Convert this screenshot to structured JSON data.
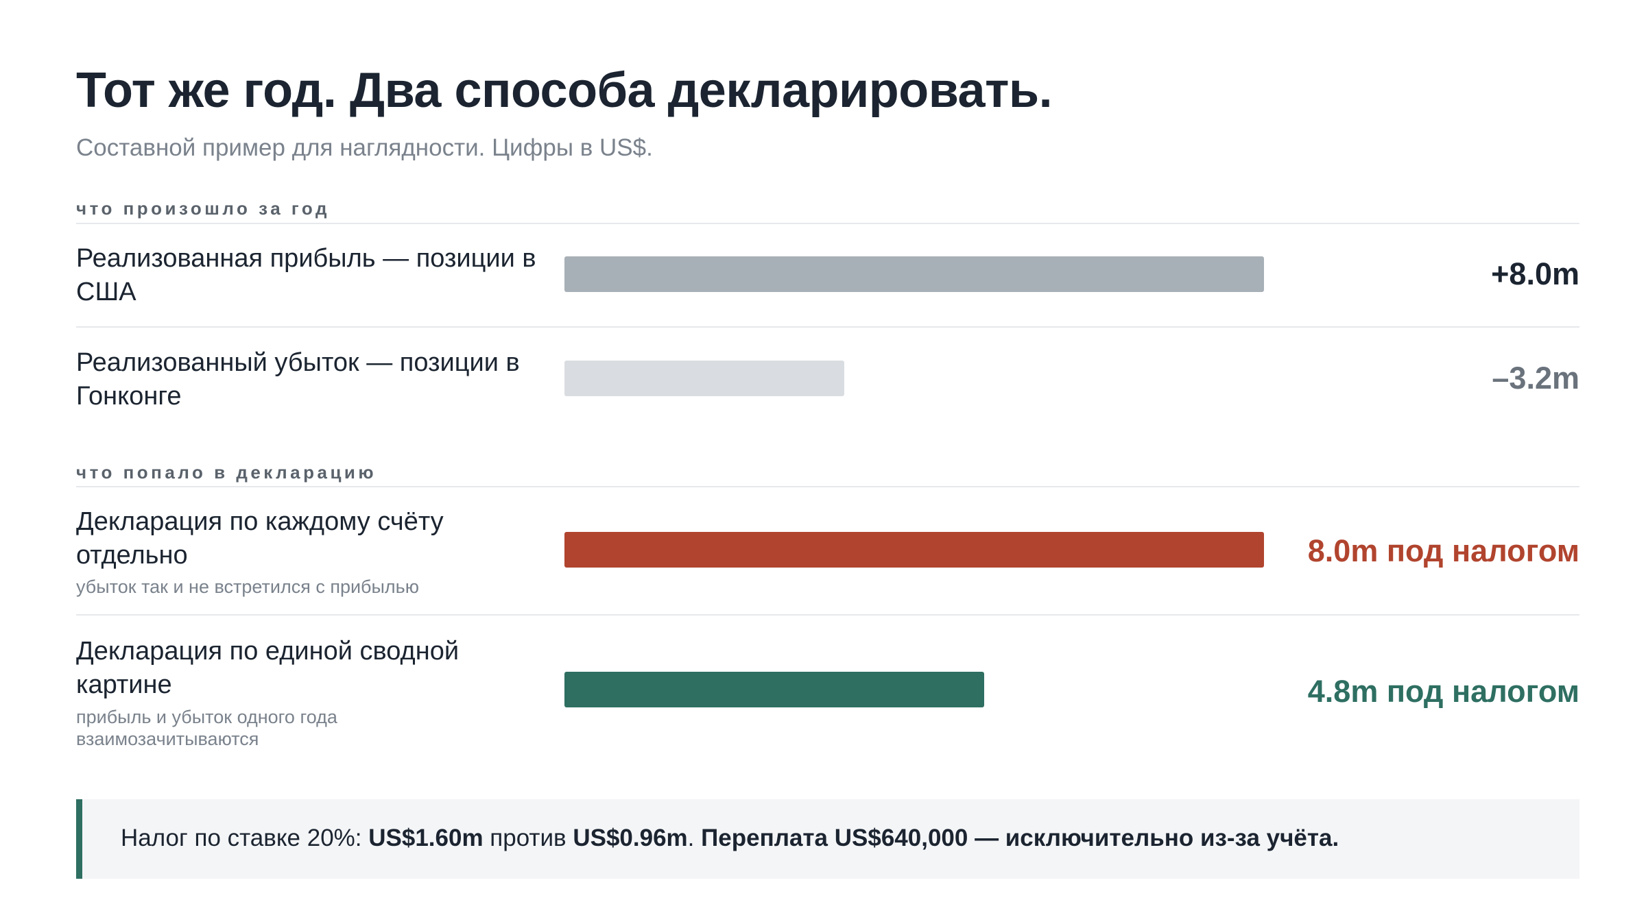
{
  "title": "Тот же год. Два способа декларировать.",
  "subtitle": "Составной пример для наглядности. Цифры в US$.",
  "chart_data": {
    "type": "bar",
    "orientation": "horizontal",
    "unit": "m US$",
    "x_max": 12,
    "groups": [
      {
        "label": "что произошло за год",
        "rows": [
          {
            "label": "Реализованная прибыль — позиции в США",
            "note": "",
            "value": 8.0,
            "value_label": "+8.0m",
            "color": "#a8b0b7",
            "text_color": "#1b2430"
          },
          {
            "label": "Реализованный убыток — позиции в Гонконге",
            "note": "",
            "value": 3.2,
            "value_label": "–3.2m",
            "color": "#d9dde1",
            "text_color": "#6a727c"
          }
        ]
      },
      {
        "label": "что попало в декларацию",
        "rows": [
          {
            "label": "Декларация по каждому счёту отдельно",
            "note": "убыток так и не встретился с прибылью",
            "value": 8.0,
            "value_label": "8.0m под налогом",
            "color": "#b1442e",
            "text_color": "#b1442e"
          },
          {
            "label": "Декларация по единой сводной картине",
            "note": "прибыль и убыток одного года взаимозачитываются",
            "value": 4.8,
            "value_label": "4.8m под налогом",
            "color": "#2e6f62",
            "text_color": "#2e6f62"
          }
        ]
      }
    ]
  },
  "callout": {
    "prefix": "Налог по ставке 20%: ",
    "amount_a": "US$1.60m",
    "middle": " против ",
    "amount_b": "US$0.96m",
    "dot": ". ",
    "conclusion": "Переплата US$640,000 — исключительно из-за учёта.",
    "accent_color": "#2e6f62"
  }
}
